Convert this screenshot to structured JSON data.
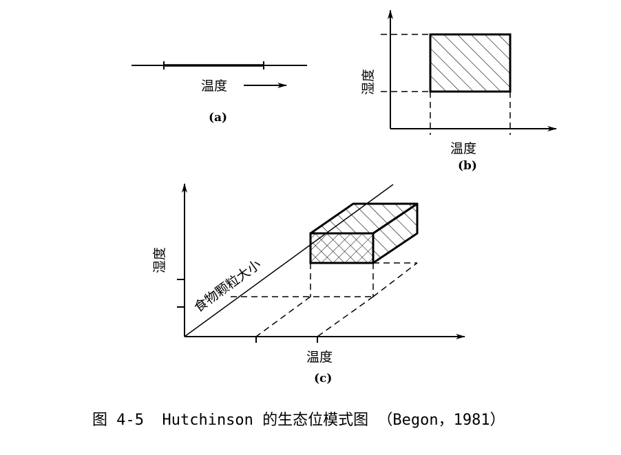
{
  "panel_a": {
    "label": "(a)",
    "axis_label": "温度"
  },
  "panel_b": {
    "label": "(b)",
    "x_axis_label": "温度",
    "y_axis_label": "湿度"
  },
  "panel_c": {
    "label": "(c)",
    "x_axis_label": "温度",
    "y_axis_label": "湿度",
    "z_axis_label": "食物颗粒大小"
  },
  "caption": "图 4-5  Hutchinson 的生态位模式图 （Begon，1981）"
}
